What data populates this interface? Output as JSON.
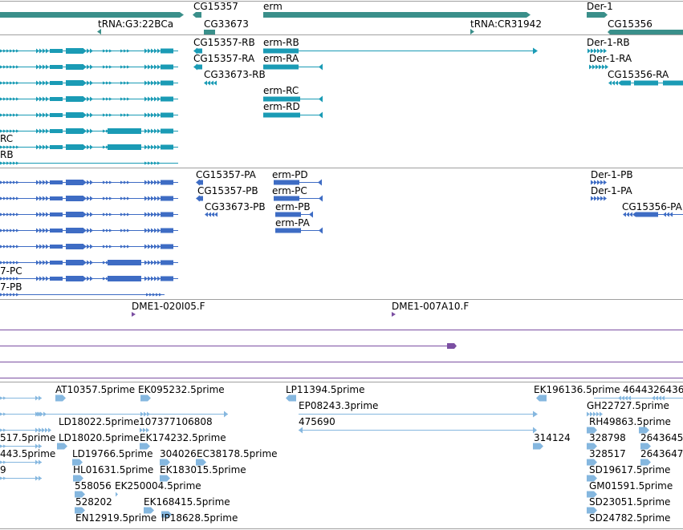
{
  "colors": {
    "gene": "#3a8f8a",
    "flybase": "#1a9bb5",
    "refseq": "#3e6cc4",
    "clone": "#7b4fa2",
    "est": "#85b7df",
    "divider": "#a0a0a0",
    "background": "#ffffff"
  },
  "genes": [
    {
      "label": "tRNA:G3:22BCa"
    },
    {
      "label": "CG15357"
    },
    {
      "label": "CG33673"
    },
    {
      "label": "erm"
    },
    {
      "label": "tRNA:CR31942"
    },
    {
      "label": "Der-1"
    },
    {
      "label": "CG15356"
    }
  ],
  "flybase_transcripts": [
    {
      "label": "CG15357-RB"
    },
    {
      "label": "CG15357-RA"
    },
    {
      "label": "CG33673-RB"
    },
    {
      "label": "erm-RB"
    },
    {
      "label": "erm-RA"
    },
    {
      "label": "erm-RC"
    },
    {
      "label": "erm-RD"
    },
    {
      "label": "Der-1-RB"
    },
    {
      "label": "Der-1-RA"
    },
    {
      "label": "CG15356-RA"
    },
    {
      "label": "RC"
    },
    {
      "label": "RB"
    }
  ],
  "refseq_transcripts": [
    {
      "label": "CG15357-PA"
    },
    {
      "label": "CG15357-PB"
    },
    {
      "label": "CG33673-PB"
    },
    {
      "label": "erm-PD"
    },
    {
      "label": "erm-PC"
    },
    {
      "label": "erm-PB"
    },
    {
      "label": "erm-PA"
    },
    {
      "label": "Der-1-PB"
    },
    {
      "label": "Der-1-PA"
    },
    {
      "label": "CG15356-PA"
    },
    {
      "label": "7-PC"
    },
    {
      "label": "7-PB"
    }
  ],
  "clones": [
    {
      "label": "DME1-020I05.F"
    },
    {
      "label": "DME1-007A10.F"
    }
  ],
  "ests": [
    {
      "label": "AT10357.5prime"
    },
    {
      "label": "EK095232.5prime"
    },
    {
      "label": "LP11394.5prime"
    },
    {
      "label": "EK196136.5prime"
    },
    {
      "label": "4644326436"
    },
    {
      "label": "EP08243.3prime"
    },
    {
      "label": "GH22727.5prime"
    },
    {
      "label": "LD18022.5prime"
    },
    {
      "label": "107377106808"
    },
    {
      "label": "475690"
    },
    {
      "label": "RH49863.5prime"
    },
    {
      "label": "517.5prime"
    },
    {
      "label": "LD18020.5prime"
    },
    {
      "label": "EK174232.5prime"
    },
    {
      "label": "314124"
    },
    {
      "label": "328798"
    },
    {
      "label": "2643645"
    },
    {
      "label": "443.5prime"
    },
    {
      "label": "LD19766.5prime"
    },
    {
      "label": "304026"
    },
    {
      "label": "EC38178.5prime"
    },
    {
      "label": "328517"
    },
    {
      "label": "2643647"
    },
    {
      "label": "9"
    },
    {
      "label": "HL01631.5prime"
    },
    {
      "label": "EK183015.5prime"
    },
    {
      "label": "SD19617.5prime"
    },
    {
      "label": "558056"
    },
    {
      "label": "EK250004.5prime"
    },
    {
      "label": "GM01591.5prime"
    },
    {
      "label": "528202"
    },
    {
      "label": "EK168415.5prime"
    },
    {
      "label": "SD23051.5prime"
    },
    {
      "label": "EN12919.5prime"
    },
    {
      "label": "IP18628.5prime"
    },
    {
      "label": "SD24782.5prime"
    }
  ]
}
